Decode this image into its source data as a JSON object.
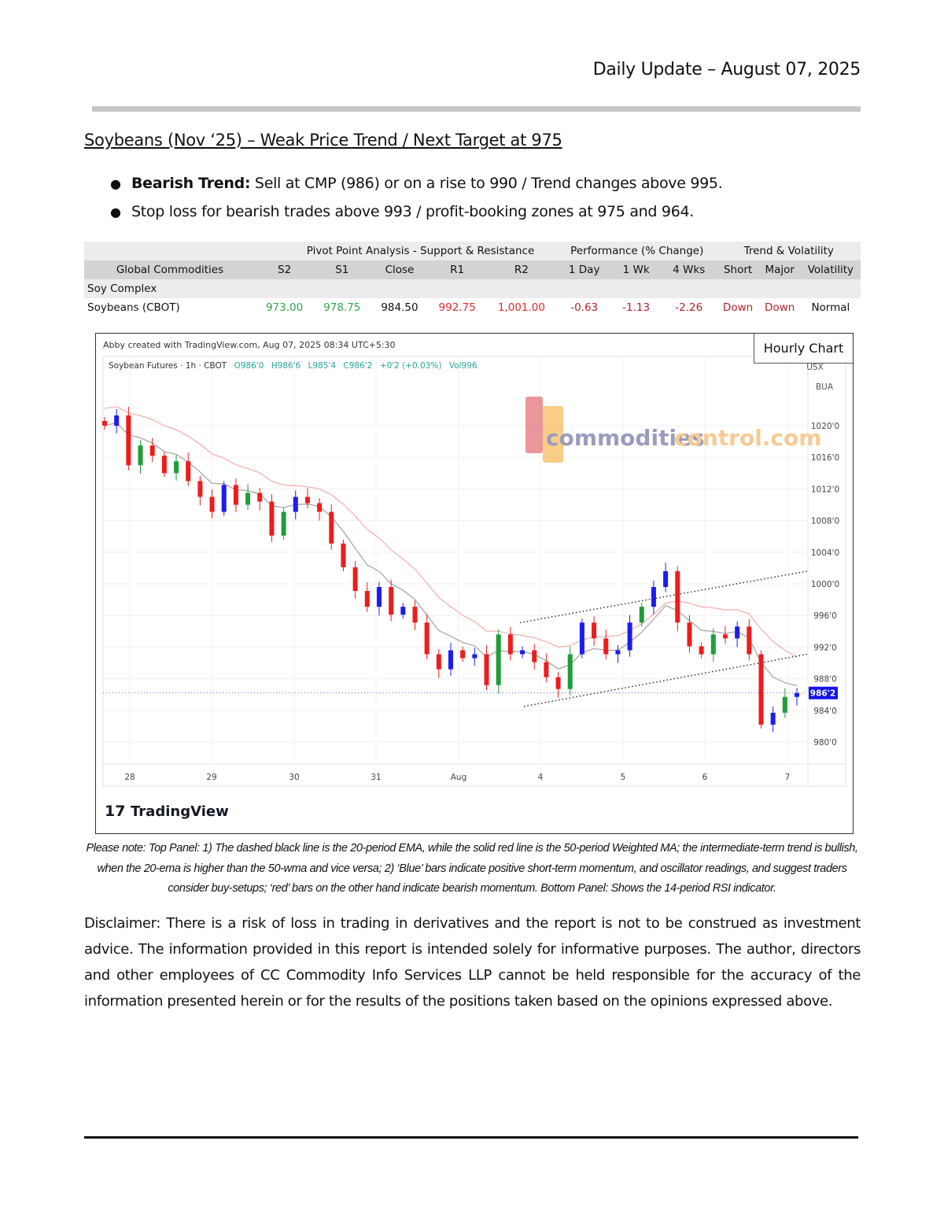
{
  "header": {
    "title": "Daily Update – August 07, 2025"
  },
  "heading": "Soybeans (Nov   ‘25) – Weak Price Trend / Next Target at 975",
  "bullets": [
    {
      "bold": "Bearish Trend:",
      "text": " Sell at CMP (986) or on a rise to 990 / Trend changes above 995."
    },
    {
      "bold": "",
      "text": "Stop loss for bearish trades above 993 / profit-booking zones at 975 and 964."
    }
  ],
  "table": {
    "group_headers": [
      "Pivot Point Analysis - Support & Resistance",
      "Performance (% Change)",
      "Trend & Volatility"
    ],
    "columns": [
      "Global Commodities",
      "S2",
      "S1",
      "Close",
      "R1",
      "R2",
      "1 Day",
      "1 Wk",
      "4 Wks",
      "Short",
      "Major",
      "Volatility"
    ],
    "section": "Soy Complex",
    "row": [
      "Soybeans (CBOT)",
      "973.00",
      "978.75",
      "984.50",
      "992.75",
      "1,001.00",
      "-0.63",
      "-1.13",
      "-2.26",
      "Down",
      "Down",
      "Normal"
    ]
  },
  "chart": {
    "created": "Abby created with TradingView.com, Aug 07, 2025 08:34 UTC+5:30",
    "badge": "Hourly Chart",
    "symbol": "Soybean Futures · 1h · CBOT",
    "ohlc": {
      "o": "O986'0",
      "h": "H986'6",
      "l": "L985'4",
      "c": "C986'2",
      "chg": "+0'2 (+0.03%)",
      "vol": "Vol996"
    },
    "currency_labels": [
      "USX",
      "BUA"
    ],
    "watermark": {
      "part1": "commodities",
      "part2": "control.com"
    },
    "brand": "TradingView",
    "colors": {
      "up": "#1c1cf0",
      "up_alt": "#1f9d3a",
      "down": "#ee1c1c",
      "ema": "#a8a8a8",
      "wma": "#f5b0b0",
      "price_tag": "#1515e8"
    }
  },
  "chart_data": {
    "type": "candlestick",
    "closes": [
      1020.0,
      1021.3,
      1015.0,
      1017.5,
      1016.2,
      1014.0,
      1015.5,
      1013.0,
      1011.0,
      1009.1,
      1012.5,
      1010.0,
      1011.5,
      1010.4,
      1006.1,
      1009.1,
      1011.0,
      1010.2,
      1009.1,
      1005.1,
      1002.1,
      999.1,
      997.1,
      999.6,
      996.1,
      997.1,
      995.1,
      991.1,
      989.2,
      991.6,
      990.6,
      991.1,
      987.2,
      993.6,
      991.1,
      991.6,
      990.1,
      988.2,
      986.7,
      991.1,
      995.1,
      993.1,
      991.1,
      991.6,
      995.1,
      997.1,
      999.6,
      1001.6,
      995.1,
      992.1,
      991.1,
      993.6,
      993.1,
      994.6,
      991.1,
      982.2,
      983.7,
      985.7,
      986.2
    ],
    "last_price": "986'2",
    "y_ticks": [
      {
        "v": 1020,
        "label": "1020'0"
      },
      {
        "v": 1016,
        "label": "1016'0"
      },
      {
        "v": 1012,
        "label": "1012'0"
      },
      {
        "v": 1008,
        "label": "1008'0"
      },
      {
        "v": 1004,
        "label": "1004'0"
      },
      {
        "v": 1000,
        "label": "1000'0"
      },
      {
        "v": 996,
        "label": "996'0"
      },
      {
        "v": 992,
        "label": "992'0"
      },
      {
        "v": 988,
        "label": "988'0"
      },
      {
        "v": 984,
        "label": "984'0"
      },
      {
        "v": 980,
        "label": "980'0"
      }
    ],
    "x_ticks": [
      "28",
      "29",
      "30",
      "31",
      "Aug",
      "4",
      "5",
      "6",
      "7"
    ],
    "channel": {
      "upper": [
        995.1,
        1001.6
      ],
      "lower": [
        984.5,
        991.1
      ]
    },
    "lines": [
      "20-period EMA",
      "50-period Weighted MA"
    ]
  },
  "footnote": "Please note: Top Panel: 1) The dashed black line is the 20-period EMA, while the solid red line is the 50-period Weighted MA; the intermediate-term trend is bullish, when the 20-ema is higher than the 50-wma and vice versa; 2)    ‘Blue’    bars indicate positive short-term momentum, and oscillator readings, and suggest traders consider buy-setups;    ‘red’    bars on the other hand indicate bearish momentum. Bottom Panel: Shows the 14-period RSI indicator.",
  "disclaimer": "Disclaimer: There is a risk of loss in trading in derivatives and the report is not to be construed as investment advice. The information provided in this report is intended solely for informative purposes. The author, directors and other employees of CC Commodity Info Services LLP cannot be held responsible for the accuracy of the information presented herein or for the results of the positions taken based on the opinions expressed above."
}
